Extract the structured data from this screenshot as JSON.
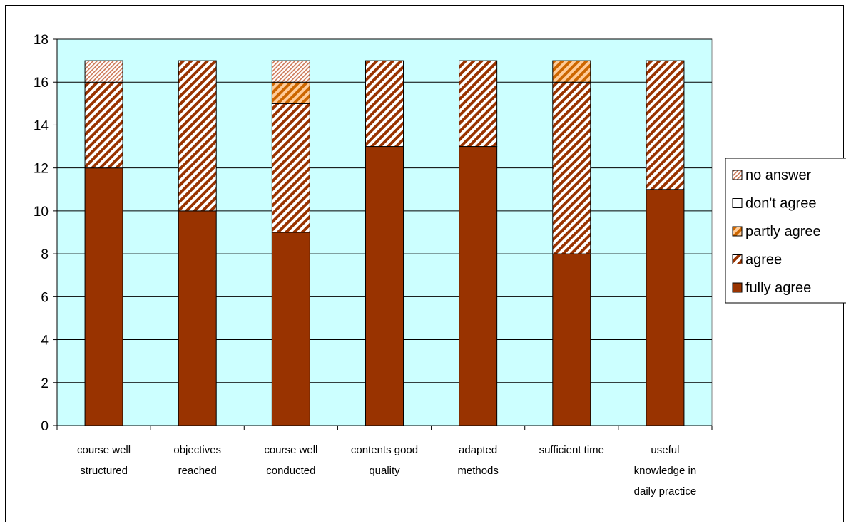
{
  "chart_data": {
    "type": "bar",
    "stacked": true,
    "categories": [
      [
        "course well",
        "structured"
      ],
      [
        "objectives",
        "reached"
      ],
      [
        "course well",
        "conducted"
      ],
      [
        "contents good",
        "quality"
      ],
      [
        "adapted",
        "methods"
      ],
      [
        "sufficient time"
      ],
      [
        "useful",
        "knowledge in",
        "daily practice"
      ]
    ],
    "series": [
      {
        "name": "fully agree",
        "values": [
          12,
          10,
          9,
          13,
          13,
          8,
          11
        ],
        "color": "#993300",
        "pattern": "solid"
      },
      {
        "name": "agree",
        "values": [
          4,
          7,
          6,
          4,
          4,
          8,
          6
        ],
        "color": "#993300",
        "pattern": "diagonal-stripes"
      },
      {
        "name": "partly agree",
        "values": [
          0,
          0,
          1,
          0,
          0,
          1,
          0
        ],
        "color": "#cc6600",
        "pattern": "diagonal-stripes"
      },
      {
        "name": "don't agree",
        "values": [
          0,
          0,
          0,
          0,
          0,
          0,
          0
        ],
        "color": "#ffffff",
        "pattern": "solid"
      },
      {
        "name": "no answer",
        "values": [
          1,
          0,
          1,
          0,
          0,
          0,
          0
        ],
        "color": "#cc8866",
        "pattern": "fine-diagonal"
      }
    ],
    "ylim": [
      0,
      18
    ],
    "yticks": [
      0,
      2,
      4,
      6,
      8,
      10,
      12,
      14,
      16,
      18
    ],
    "grid": true,
    "plot_background": "#ccffff",
    "legend_position": "right",
    "legend_order": [
      "no answer",
      "don't agree",
      "partly agree",
      "agree",
      "fully agree"
    ],
    "title": "",
    "xlabel": "",
    "ylabel": ""
  }
}
